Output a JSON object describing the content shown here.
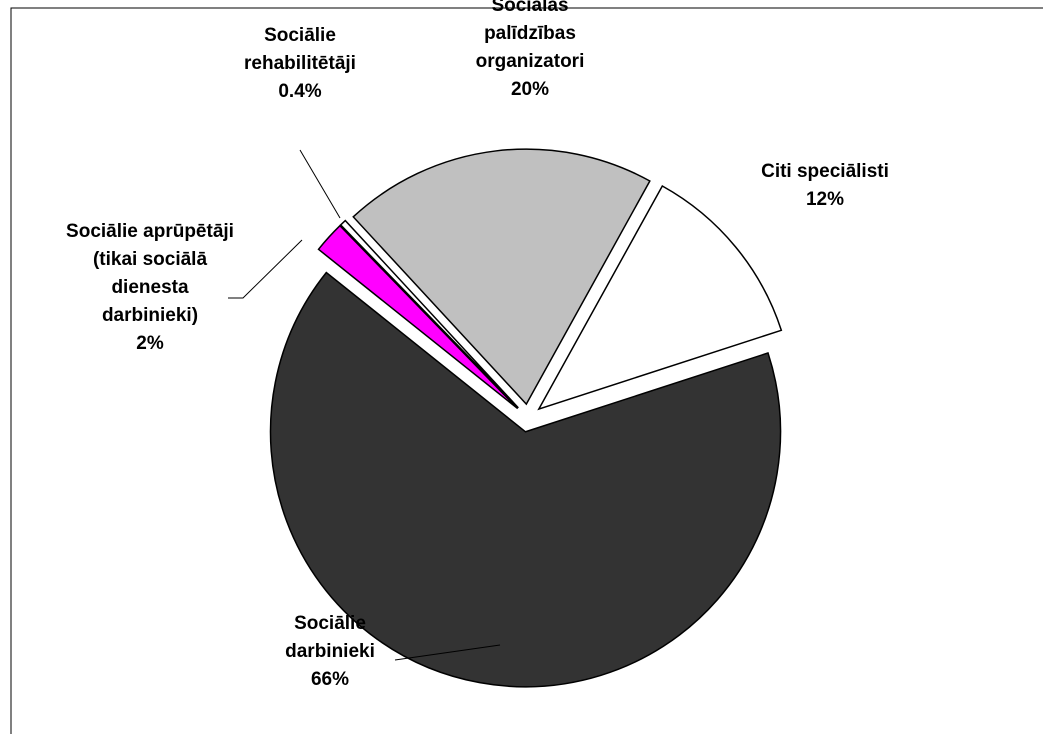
{
  "chart_data": {
    "type": "pie",
    "categories": [
      "Sociālie darbinieki",
      "Sociālie aprūpētāji (tikai sociālā dienesta darbinieki)",
      "Sociālie rehabilitētāji",
      "Sociālās palīdzības organizatori",
      "Citi speciālisti"
    ],
    "values": [
      66,
      2,
      0.4,
      20,
      12
    ],
    "value_labels": [
      "66%",
      "2%",
      "0.4%",
      "20%",
      "12%"
    ],
    "colors": [
      "#333333",
      "#ff00ff",
      "#ffffff",
      "#c0c0c0",
      "#ffffff"
    ]
  }
}
